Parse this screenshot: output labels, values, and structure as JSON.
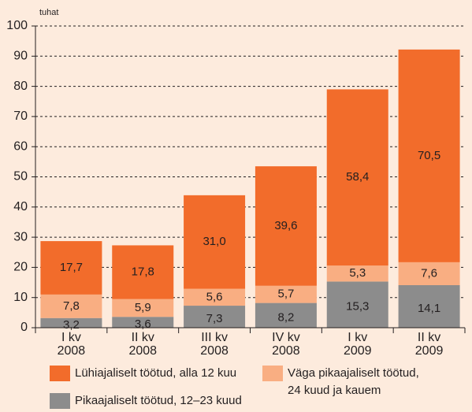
{
  "chart_data": {
    "type": "stacked_bar",
    "y_label": "tuhat",
    "categories": [
      "I kv\n2008",
      "II kv\n2008",
      "III kv\n2008",
      "IV kv\n2008",
      "I kv\n2009",
      "II kv\n2009"
    ],
    "series": [
      {
        "name": "Pikaajaliselt töötud, 12–23 kuud",
        "color": "#8c8c8c",
        "values": [
          3.2,
          3.6,
          7.3,
          8.2,
          15.3,
          14.1
        ],
        "value_labels": [
          "3,2",
          "3,6",
          "7,3",
          "8,2",
          "15,3",
          "14,1"
        ]
      },
      {
        "name": "Väga pikaajaliselt töötud,\n24 kuud ja kauem",
        "color": "#f9ae82",
        "values": [
          7.8,
          5.9,
          5.6,
          5.7,
          5.3,
          7.6
        ],
        "value_labels": [
          "7,8",
          "5,9",
          "5,6",
          "5,7",
          "5,3",
          "7,6"
        ]
      },
      {
        "name": "Lühiajaliselt töötud, alla 12 kuu",
        "color": "#f26c2b",
        "values": [
          17.7,
          17.8,
          31.0,
          39.6,
          58.4,
          70.5
        ],
        "value_labels": [
          "17,7",
          "17,8",
          "31,0",
          "39,6",
          "58,4",
          "70,5"
        ]
      }
    ],
    "ylim": [
      0,
      100
    ],
    "yticks": [
      0,
      10,
      20,
      30,
      40,
      50,
      60,
      70,
      80,
      90,
      100
    ],
    "grid": true
  }
}
